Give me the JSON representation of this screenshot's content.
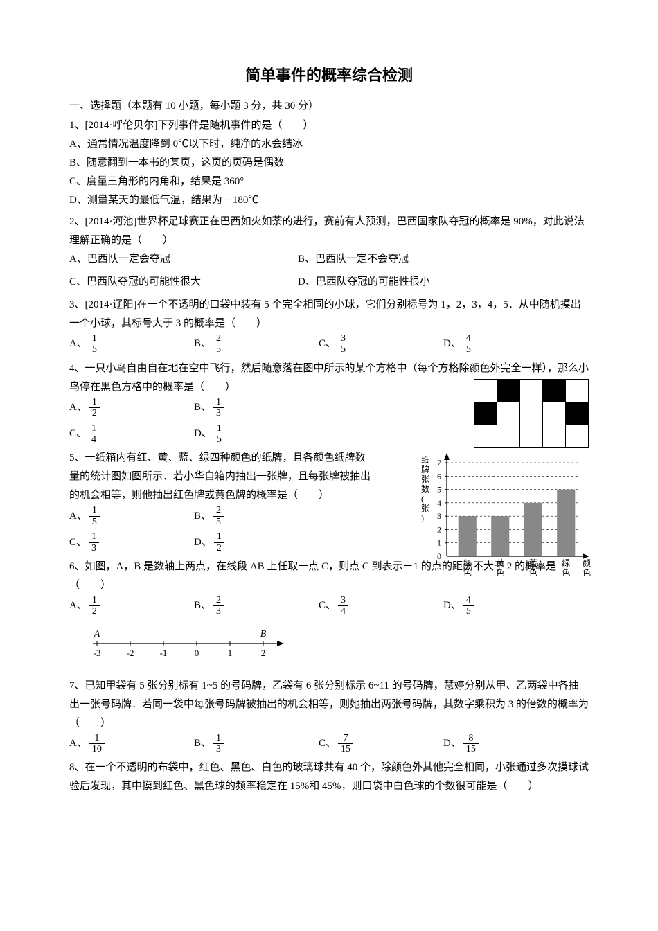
{
  "title": "简单事件的概率综合检测",
  "section1": "一、选择题（本题有 10 小题，每小题 3 分，共 30 分）",
  "q1": {
    "stem": "1、[2014·呼伦贝尔]下列事件是随机事件的是（　　）",
    "A": "A、通常情况温度降到 0℃以下时，纯净的水会结冰",
    "B": "B、随意翻到一本书的某页，这页的页码是偶数",
    "C": "C、度量三角形的内角和，结果是 360°",
    "D": "D、测量某天的最低气温，结果为－180℃"
  },
  "q2": {
    "stem": "2、[2014·河池]世界杯足球赛正在巴西如火如荼的进行，赛前有人预测，巴西国家队夺冠的概率是 90%，对此说法理解正确的是（　　）",
    "A": "A、巴西队一定会夺冠",
    "B": "B、巴西队一定不会夺冠",
    "C": "C、巴西队夺冠的可能性很大",
    "D": "D、巴西队夺冠的可能性很小"
  },
  "q3": {
    "stem": "3、[2014·辽阳]在一个不透明的口袋中装有 5 个完全相同的小球，它们分别标号为 1，2，3，4，5．从中随机摸出一个小球，其标号大于 3 的概率是（　　）",
    "opts": {
      "A": {
        "n": "1",
        "d": "5"
      },
      "B": {
        "n": "2",
        "d": "5"
      },
      "C": {
        "n": "3",
        "d": "5"
      },
      "D": {
        "n": "4",
        "d": "5"
      }
    }
  },
  "q4": {
    "stem": "4、一只小鸟自由自在地在空中飞行，然后随意落在图中所示的某个方格中（每个方格除颜色外完全一样），那么小鸟停在黑色方格中的概率是（　　）",
    "opts": {
      "A": {
        "n": "1",
        "d": "2"
      },
      "B": {
        "n": "1",
        "d": "3"
      },
      "C": {
        "n": "1",
        "d": "4"
      },
      "D": {
        "n": "1",
        "d": "5"
      }
    },
    "grid": [
      [
        0,
        1,
        0,
        1,
        0
      ],
      [
        1,
        0,
        0,
        0,
        1
      ],
      [
        0,
        0,
        0,
        0,
        0
      ]
    ]
  },
  "q5": {
    "stem": "5、一纸箱内有红、黄、蓝、绿四种颜色的纸牌，且各颜色纸牌数量的统计图如图所示．若小华自箱内抽出一张牌，且每张牌被抽出的机会相等，则他抽出红色牌或黄色牌的概率是（　　）",
    "opts": {
      "A": {
        "n": "1",
        "d": "5"
      },
      "B": {
        "n": "2",
        "d": "5"
      },
      "C": {
        "n": "1",
        "d": "3"
      },
      "D": {
        "n": "1",
        "d": "2"
      }
    },
    "chart": {
      "ylabel": "纸牌张数(张)",
      "xlabel": "颜色",
      "ymax": 7,
      "categories": [
        "红色",
        "黄色",
        "蓝色",
        "绿色"
      ],
      "values": [
        3,
        3,
        4,
        5
      ],
      "bar_color": "#888888",
      "axis_color": "#000000",
      "bg": "#ffffff"
    }
  },
  "q6": {
    "stem": "6、如图，A，B 是数轴上两点，在线段 AB 上任取一点 C，则点 C 到表示－1 的点的距离不大于 2 的概率是（　　）",
    "opts": {
      "A": {
        "n": "1",
        "d": "2"
      },
      "B": {
        "n": "2",
        "d": "3"
      },
      "C": {
        "n": "3",
        "d": "4"
      },
      "D": {
        "n": "4",
        "d": "5"
      }
    },
    "numberline": {
      "min": -3,
      "max": 2,
      "A": -3,
      "B": 2,
      "Alabel": "A",
      "Blabel": "B"
    }
  },
  "q7": {
    "stem": "7、已知甲袋有 5 张分别标有 1~5 的号码牌，乙袋有 6 张分别标示 6~11 的号码牌，慧婷分别从甲、乙两袋中各抽出一张号码牌．若同一袋中每张号码牌被抽出的机会相等，则她抽出两张号码牌，其数字乘积为 3 的倍数的概率为（　　）",
    "opts": {
      "A": {
        "n": "1",
        "d": "10"
      },
      "B": {
        "n": "1",
        "d": "3"
      },
      "C": {
        "n": "7",
        "d": "15"
      },
      "D": {
        "n": "8",
        "d": "15"
      }
    }
  },
  "q8": {
    "stem": "8、在一个不透明的布袋中，红色、黑色、白色的玻璃球共有 40 个，除颜色外其他完全相同，小张通过多次摸球试验后发现，其中摸到红色、黑色球的频率稳定在 15%和 45%，则口袋中白色球的个数很可能是（　　）"
  }
}
